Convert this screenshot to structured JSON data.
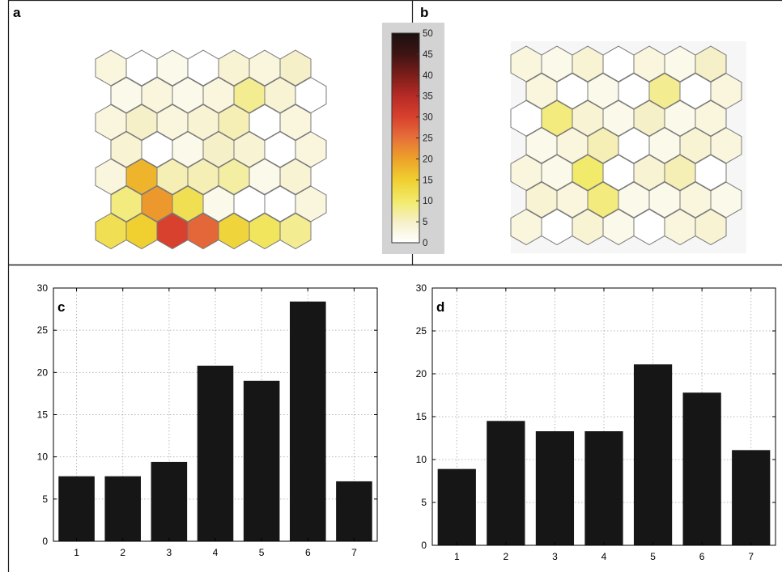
{
  "panels": {
    "a": {
      "label": "a"
    },
    "b": {
      "label": "b"
    },
    "c": {
      "label": "c"
    },
    "d": {
      "label": "d"
    }
  },
  "colorbar": {
    "min": 0,
    "max": 50,
    "tick_labels": [
      "0",
      "5",
      "10",
      "15",
      "20",
      "25",
      "30",
      "35",
      "40",
      "45",
      "50"
    ],
    "colors": [
      "#ffffff",
      "#f6f0c8",
      "#f2ea6a",
      "#f0cf30",
      "#eda22a",
      "#e6703a",
      "#d8412e",
      "#b72a26",
      "#7b1e19",
      "#3e1413",
      "#1a1110"
    ]
  },
  "chart_data": [
    {
      "panel": "a",
      "type": "heatmap",
      "title": "",
      "xlabel": "",
      "ylabel": "",
      "layout": "hexagonal",
      "rows": 7,
      "cols": 7,
      "values": [
        [
          3,
          0,
          2,
          0,
          4,
          3,
          5
        ],
        [
          2,
          3,
          2,
          3,
          8,
          4,
          0
        ],
        [
          3,
          5,
          3,
          4,
          6,
          0,
          3
        ],
        [
          4,
          0,
          2,
          5,
          4,
          0,
          3
        ],
        [
          3,
          18,
          6,
          6,
          7,
          2,
          4
        ],
        [
          9,
          21,
          12,
          2,
          0,
          0,
          3
        ],
        [
          12,
          15,
          30,
          26,
          14,
          11,
          8
        ]
      ]
    },
    {
      "panel": "b",
      "type": "heatmap",
      "title": "",
      "xlabel": "",
      "ylabel": "",
      "layout": "hexagonal",
      "rows": 7,
      "cols": 7,
      "values": [
        [
          3,
          2,
          4,
          0,
          3,
          2,
          5
        ],
        [
          3,
          0,
          2,
          0,
          8,
          0,
          3
        ],
        [
          0,
          9,
          4,
          2,
          5,
          2,
          3
        ],
        [
          2,
          3,
          6,
          0,
          2,
          4,
          3
        ],
        [
          3,
          2,
          10,
          0,
          4,
          6,
          0
        ],
        [
          4,
          3,
          9,
          2,
          2,
          3,
          2
        ],
        [
          3,
          0,
          4,
          2,
          0,
          3,
          4
        ]
      ]
    },
    {
      "panel": "c",
      "type": "bar",
      "title": "",
      "xlabel": "",
      "ylabel": "",
      "categories": [
        "1",
        "2",
        "3",
        "4",
        "5",
        "6",
        "7"
      ],
      "values": [
        7.7,
        7.7,
        9.4,
        20.8,
        19.0,
        28.4,
        7.1
      ],
      "ylim": [
        0,
        30
      ],
      "yticks": [
        "0",
        "5",
        "10",
        "15",
        "20",
        "25",
        "30"
      ],
      "grid": true,
      "bar_color": "#161616"
    },
    {
      "panel": "d",
      "type": "bar",
      "title": "",
      "xlabel": "",
      "ylabel": "",
      "categories": [
        "1",
        "2",
        "3",
        "4",
        "5",
        "6",
        "7"
      ],
      "values": [
        8.9,
        14.5,
        13.3,
        13.3,
        21.1,
        17.8,
        11.1
      ],
      "ylim": [
        0,
        30
      ],
      "yticks": [
        "0",
        "5",
        "10",
        "15",
        "20",
        "25",
        "30"
      ],
      "grid": true,
      "bar_color": "#161616"
    }
  ]
}
